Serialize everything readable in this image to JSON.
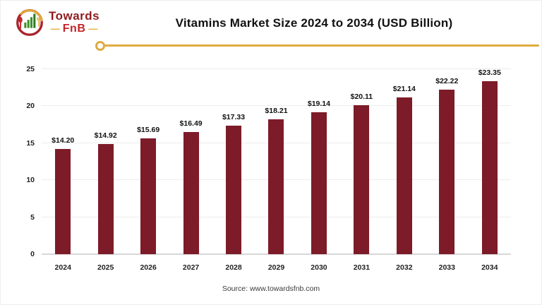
{
  "logo": {
    "towards": "Towards",
    "fnb": "FnB",
    "dash": "—"
  },
  "chart_data": {
    "type": "bar",
    "title": "Vitamins Market Size 2024 to 2034 (USD Billion)",
    "xlabel": "",
    "ylabel": "",
    "unit": "USD Billion",
    "categories": [
      "2024",
      "2025",
      "2026",
      "2027",
      "2028",
      "2029",
      "2030",
      "2031",
      "2032",
      "2033",
      "2034"
    ],
    "values": [
      14.2,
      14.92,
      15.69,
      16.49,
      17.33,
      18.21,
      19.14,
      20.11,
      21.14,
      22.22,
      23.35
    ],
    "value_labels": [
      "$14.20",
      "$14.92",
      "$15.69",
      "$16.49",
      "$17.33",
      "$18.21",
      "$19.14",
      "$20.11",
      "$21.14",
      "$22.22",
      "$23.35"
    ],
    "ylim": [
      0,
      25
    ],
    "y_ticks": [
      0,
      5,
      10,
      15,
      20,
      25
    ],
    "grid": true,
    "legend": "none",
    "bar_color": "#7d1b28"
  },
  "colors": {
    "accent_gold": "#dfac42",
    "bar_maroon": "#7d1b28",
    "logo_dark_red": "#8e1b1e",
    "logo_red": "#c2252b",
    "logo_green": "#3f8f2c"
  },
  "footer": {
    "source": "Source: www.towardsfnb.com"
  }
}
